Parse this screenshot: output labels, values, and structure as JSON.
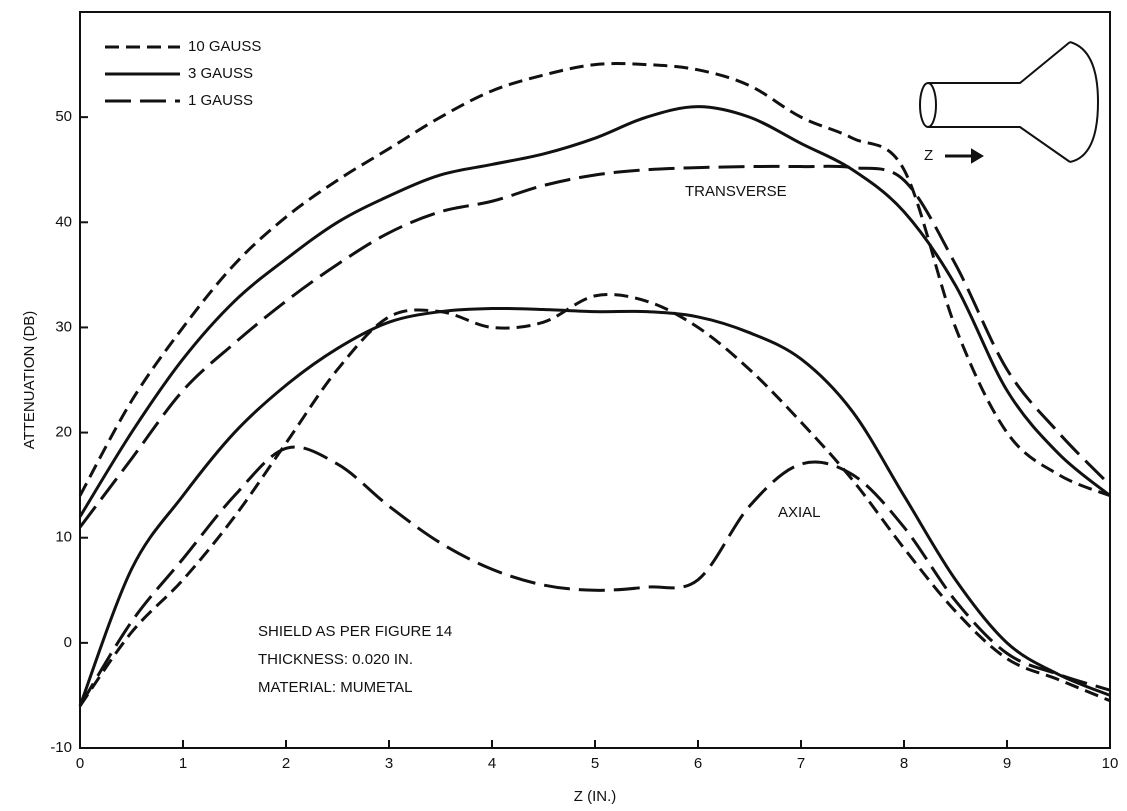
{
  "chart_data": {
    "type": "line",
    "x_label": "Z (IN.)",
    "y_label": "ATTENUATION (DB)",
    "x": [
      0,
      0.5,
      1,
      1.5,
      2,
      2.5,
      3,
      3.5,
      4,
      4.5,
      5,
      5.5,
      6,
      6.5,
      7,
      7.5,
      8,
      8.5,
      9,
      9.5,
      10
    ],
    "series": [
      {
        "name": "10 GAUSS",
        "color": "#111111",
        "dash": "short",
        "transverse": [
          14,
          23,
          30,
          36,
          40.5,
          44,
          47,
          50,
          52.5,
          54,
          55,
          55,
          54.5,
          53,
          50,
          48,
          45,
          30,
          20,
          16,
          14
        ],
        "axial": [
          -6,
          1,
          6,
          12,
          19,
          26,
          31,
          31.5,
          30,
          30.5,
          33,
          32.5,
          30,
          26,
          21,
          15.5,
          9,
          3,
          -1.5,
          -3.5,
          -5.5
        ]
      },
      {
        "name": "3 GAUSS",
        "color": "#111111",
        "dash": "solid",
        "transverse": [
          12,
          20,
          27,
          32.5,
          36.5,
          40,
          42.5,
          44.5,
          45.5,
          46.5,
          48,
          50,
          51,
          50,
          47.5,
          45,
          41,
          34,
          24,
          18,
          14
        ],
        "axial": [
          -6,
          7,
          14,
          20,
          24.5,
          28,
          30.5,
          31.5,
          31.8,
          31.7,
          31.5,
          31.5,
          31,
          29.5,
          27,
          22,
          14,
          6,
          0,
          -3,
          -5
        ]
      },
      {
        "name": "1 GAUSS",
        "color": "#111111",
        "dash": "long",
        "transverse": [
          11,
          17.5,
          24,
          28.5,
          32.5,
          36,
          39,
          41,
          42,
          43.5,
          44.5,
          45,
          45.2,
          45.3,
          45.3,
          45.2,
          44,
          36,
          26,
          20,
          15
        ],
        "axial": [
          -6,
          2,
          8,
          14,
          18.5,
          17,
          13,
          9.5,
          7,
          5.5,
          5,
          5.3,
          6,
          13,
          17,
          16,
          11,
          4,
          -1,
          -3,
          -4.5
        ]
      }
    ],
    "annotations": [
      "TRANSVERSE",
      "AXIAL"
    ],
    "notes": [
      "SHIELD AS PER FIGURE 14",
      "THICKNESS: 0.020 IN.",
      "MATERIAL: MUMETAL"
    ],
    "inset_label": "Z",
    "xlim": [
      0,
      10
    ],
    "xticks": [
      0,
      1,
      2,
      3,
      4,
      5,
      6,
      7,
      8,
      9,
      10
    ],
    "ylim": [
      -10,
      60
    ],
    "yticks": [
      -10,
      0,
      10,
      20,
      30,
      40,
      50
    ],
    "legend": "upper left"
  }
}
